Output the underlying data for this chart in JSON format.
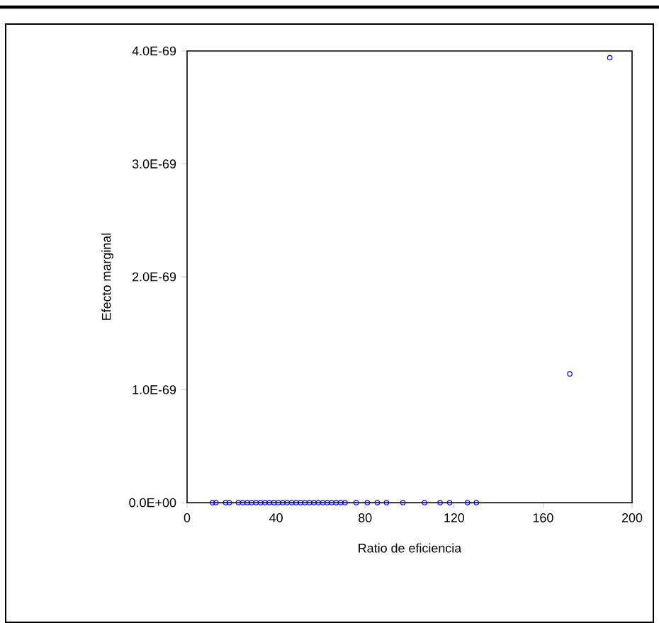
{
  "chart_data": {
    "type": "scatter",
    "xlabel": "Ratio de eficiencia",
    "ylabel": "Efecto marginal",
    "x": [
      11.4,
      13,
      17.3,
      19,
      23,
      25,
      27,
      29,
      31,
      33,
      35,
      37,
      39,
      41,
      43,
      45,
      47,
      49,
      51,
      53,
      55,
      57,
      59,
      61,
      63,
      65,
      67,
      69,
      71,
      76,
      81,
      85.5,
      89.6,
      97,
      106.7,
      113.7,
      118,
      126,
      130,
      172,
      190
    ],
    "series": [
      {
        "color": "#0000ff",
        "values": [
          0,
          0,
          0,
          0,
          0,
          0,
          0,
          0,
          0,
          0,
          0,
          0,
          0,
          0,
          0,
          0,
          0,
          0,
          0,
          0,
          0,
          0,
          0,
          0,
          0,
          0,
          0,
          0,
          0,
          0,
          0,
          0,
          0,
          0,
          0,
          0,
          0,
          0,
          0,
          1.14e-69,
          3.94e-69
        ]
      }
    ],
    "xlim": [
      0,
      200
    ],
    "xticks": [
      0,
      40,
      80,
      120,
      160,
      200
    ],
    "ylim": [
      0,
      4e-69
    ],
    "yticks": [
      {
        "value": 0,
        "label": "0.0E+00"
      },
      {
        "value": 1e-69,
        "label": "1.0E-69"
      },
      {
        "value": 2e-69,
        "label": "2.0E-69"
      },
      {
        "value": 3e-69,
        "label": "3.0E-69"
      },
      {
        "value": 4e-69,
        "label": "4.0E-69"
      }
    ],
    "marker": "circle"
  }
}
